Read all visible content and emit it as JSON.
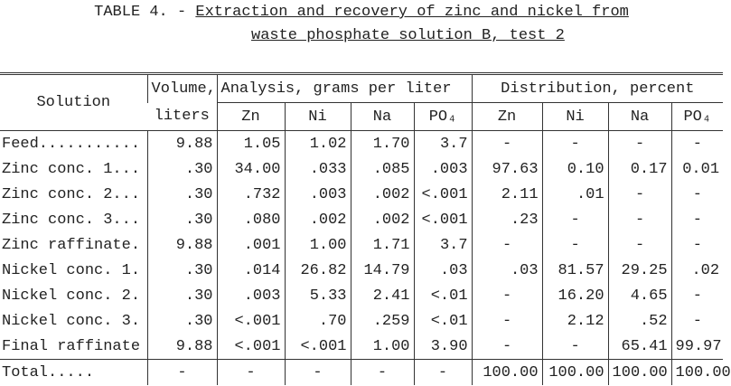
{
  "title": {
    "label": "TABLE 4. -",
    "lines": [
      "Extraction and recovery of zinc and nickel from",
      "waste phosphate solution B, test 2"
    ]
  },
  "table": {
    "header": {
      "row1": [
        "Solution",
        "Volume,",
        "Analysis, grams per liter",
        "Distribution, percent"
      ],
      "row2": [
        "liters",
        "Zn",
        "Ni",
        "Na",
        "PO₄",
        "Zn",
        "Ni",
        "Na",
        "PO₄"
      ]
    },
    "rows": [
      [
        "Feed...........",
        "9.88",
        "1.05",
        "1.02",
        "1.70",
        "3.7",
        "-",
        "-",
        "-",
        "-"
      ],
      [
        "Zinc conc. 1...",
        ".30",
        "34.00",
        ".033",
        ".085",
        ".003",
        "97.63",
        "0.10",
        "0.17",
        "0.01"
      ],
      [
        "Zinc conc. 2...",
        ".30",
        ".732",
        ".003",
        ".002",
        "<.001",
        "2.11",
        ".01",
        "-",
        "-"
      ],
      [
        "Zinc conc. 3...",
        ".30",
        ".080",
        ".002",
        ".002",
        "<.001",
        ".23",
        "-",
        "-",
        "-"
      ],
      [
        "Zinc raffinate.",
        "9.88",
        ".001",
        "1.00",
        "1.71",
        "3.7",
        "-",
        "-",
        "-",
        "-"
      ],
      [
        "Nickel conc. 1.",
        ".30",
        ".014",
        "26.82",
        "14.79",
        ".03",
        ".03",
        "81.57",
        "29.25",
        ".02"
      ],
      [
        "Nickel conc. 2.",
        ".30",
        ".003",
        "5.33",
        "2.41",
        "<.01",
        "-",
        "16.20",
        "4.65",
        "-"
      ],
      [
        "Nickel conc. 3.",
        ".30",
        "<.001",
        ".70",
        ".259",
        "<.01",
        "-",
        "2.12",
        ".52",
        "-"
      ],
      [
        "Final raffinate",
        "9.88",
        "<.001",
        "<.001",
        "1.00",
        "3.90",
        "-",
        "-",
        "65.41",
        "99.97"
      ],
      [
        "Total.....",
        "-",
        "-",
        "-",
        "-",
        "-",
        "100.00",
        "100.00",
        "100.00",
        "100.00"
      ]
    ]
  }
}
